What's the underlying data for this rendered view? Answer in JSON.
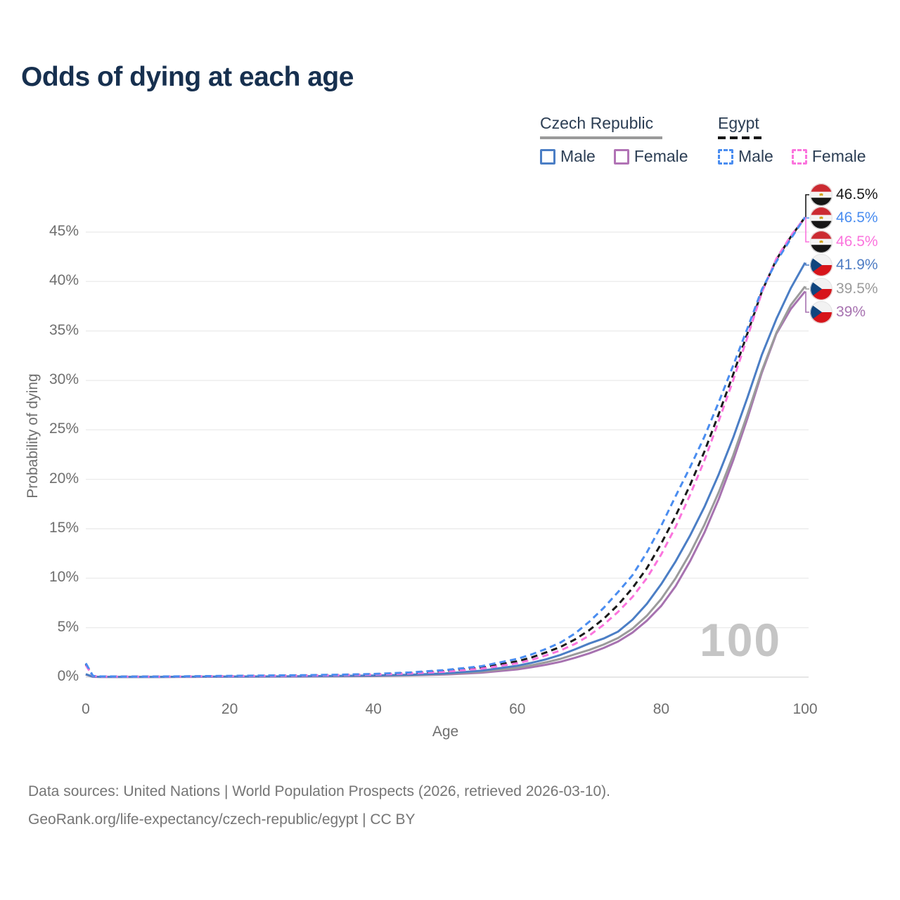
{
  "title": "Odds of dying at each age",
  "legend": {
    "czech": {
      "title": "Czech Republic",
      "male": "Male",
      "female": "Female"
    },
    "egypt": {
      "title": "Egypt",
      "male": "Male",
      "female": "Female"
    }
  },
  "axes": {
    "y_label": "Probability of dying",
    "y_ticks": [
      "0%",
      "5%",
      "10%",
      "15%",
      "20%",
      "25%",
      "30%",
      "35%",
      "40%",
      "45%"
    ],
    "x_label": "Age",
    "x_ticks": [
      "0",
      "20",
      "40",
      "60",
      "80",
      "100"
    ]
  },
  "watermark": "100",
  "end_labels": [
    {
      "flag": "egypt",
      "series": 3,
      "value": "46.5%",
      "color": "#1a1a1a"
    },
    {
      "flag": "egypt",
      "series": 5,
      "value": "46.5%",
      "color": "#4a8df0"
    },
    {
      "flag": "egypt",
      "series": 4,
      "value": "46.5%",
      "color": "#fb74dd"
    },
    {
      "flag": "czechia",
      "series": 2,
      "value": "41.9%",
      "color": "#4f7dc4"
    },
    {
      "flag": "czechia",
      "series": 1,
      "value": "39.5%",
      "color": "#9b9b9b"
    },
    {
      "flag": "czechia",
      "series": 0,
      "value": "39%",
      "color": "#a772b0"
    }
  ],
  "footer": {
    "line1": "Data sources: United Nations | World Population Prospects (2026, retrieved 2026-03-10).",
    "line2": "GeoRank.org/life-expectancy/czech-republic/egypt | CC BY"
  },
  "chart_data": {
    "type": "line",
    "title": "Odds of dying at each age",
    "xlabel": "Age",
    "ylabel": "Probability of dying",
    "x_range": [
      0,
      100
    ],
    "y_range_percent": [
      0,
      47
    ],
    "grid": "horizontal",
    "legend_position": "top-right",
    "ages": [
      0,
      1,
      2,
      5,
      10,
      15,
      20,
      25,
      30,
      35,
      40,
      45,
      50,
      55,
      60,
      62,
      64,
      66,
      68,
      70,
      72,
      74,
      76,
      78,
      80,
      82,
      84,
      86,
      88,
      90,
      92,
      94,
      96,
      98,
      100
    ],
    "series": [
      {
        "name": "Czech Republic Female",
        "country": "czechia",
        "sex": "female",
        "style": "solid",
        "color": "#a772b0",
        "end_value_pct": 39.0,
        "values_pct": [
          0.25,
          0.03,
          0.02,
          0.02,
          0.02,
          0.03,
          0.04,
          0.05,
          0.06,
          0.08,
          0.11,
          0.17,
          0.26,
          0.45,
          0.78,
          1.0,
          1.25,
          1.55,
          1.95,
          2.4,
          2.95,
          3.6,
          4.5,
          5.7,
          7.2,
          9.2,
          11.7,
          14.6,
          18.0,
          21.9,
          26.2,
          30.8,
          34.7,
          37.2,
          39.0
        ]
      },
      {
        "name": "Czech Republic Both sexes",
        "country": "czechia",
        "sex": "both",
        "style": "solid",
        "color": "#9b9b9b",
        "end_value_pct": 39.5,
        "values_pct": [
          0.28,
          0.04,
          0.03,
          0.02,
          0.02,
          0.03,
          0.05,
          0.06,
          0.08,
          0.1,
          0.14,
          0.2,
          0.32,
          0.55,
          0.95,
          1.2,
          1.5,
          1.85,
          2.3,
          2.75,
          3.3,
          3.95,
          4.9,
          6.2,
          7.9,
          10.0,
          12.5,
          15.4,
          18.7,
          22.4,
          26.6,
          31.0,
          34.8,
          37.6,
          39.5
        ]
      },
      {
        "name": "Czech Republic Male",
        "country": "czechia",
        "sex": "male",
        "style": "solid",
        "color": "#4b7ec5",
        "end_value_pct": 41.9,
        "values_pct": [
          0.3,
          0.04,
          0.03,
          0.02,
          0.02,
          0.04,
          0.06,
          0.07,
          0.09,
          0.12,
          0.16,
          0.24,
          0.38,
          0.65,
          1.15,
          1.45,
          1.8,
          2.25,
          2.8,
          3.4,
          3.9,
          4.6,
          5.8,
          7.4,
          9.4,
          11.7,
          14.3,
          17.2,
          20.5,
          24.2,
          28.3,
          32.6,
          36.2,
          39.3,
          41.9
        ]
      },
      {
        "name": "Egypt Both sexes",
        "country": "egypt",
        "sex": "both",
        "style": "dashed",
        "color": "#1a1a1a",
        "end_value_pct": 46.5,
        "values_pct": [
          1.3,
          0.11,
          0.07,
          0.05,
          0.05,
          0.08,
          0.11,
          0.14,
          0.17,
          0.21,
          0.28,
          0.41,
          0.62,
          0.95,
          1.6,
          2.0,
          2.5,
          3.05,
          3.8,
          4.75,
          5.9,
          7.3,
          9.0,
          11.0,
          13.5,
          16.3,
          19.4,
          22.8,
          26.6,
          30.6,
          34.8,
          39.0,
          42.2,
          44.5,
          46.5
        ]
      },
      {
        "name": "Egypt Female",
        "country": "egypt",
        "sex": "female",
        "style": "dashed",
        "color": "#fb74dd",
        "end_value_pct": 46.5,
        "values_pct": [
          1.2,
          0.1,
          0.06,
          0.04,
          0.04,
          0.07,
          0.1,
          0.12,
          0.15,
          0.19,
          0.25,
          0.37,
          0.55,
          0.85,
          1.4,
          1.75,
          2.2,
          2.7,
          3.35,
          4.2,
          5.3,
          6.6,
          8.1,
          10.0,
          12.4,
          15.2,
          18.4,
          21.9,
          25.9,
          30.0,
          34.4,
          38.9,
          42.3,
          44.6,
          46.5
        ]
      },
      {
        "name": "Egypt Male",
        "country": "egypt",
        "sex": "male",
        "style": "dashed",
        "color": "#4a8df0",
        "end_value_pct": 46.5,
        "values_pct": [
          1.4,
          0.12,
          0.08,
          0.06,
          0.06,
          0.09,
          0.13,
          0.16,
          0.19,
          0.24,
          0.32,
          0.47,
          0.72,
          1.1,
          1.85,
          2.3,
          2.85,
          3.5,
          4.4,
          5.6,
          7.0,
          8.6,
          10.3,
          12.6,
          15.3,
          18.3,
          21.2,
          24.3,
          27.8,
          31.5,
          35.3,
          39.2,
          42.0,
          44.3,
          46.5
        ]
      }
    ]
  },
  "style": {
    "grid_color": "#ececec",
    "baseline_color": "#dedede",
    "title_color": "#17304f",
    "axis_text_color": "#6f6f6f",
    "watermark_color": "#c5c5c5"
  }
}
